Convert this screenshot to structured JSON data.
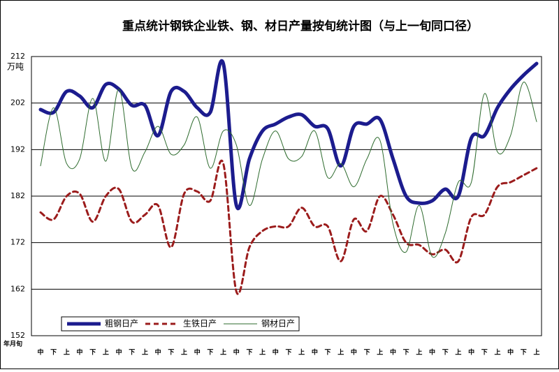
{
  "chart_data": {
    "type": "line",
    "title": "重点统计钢铁企业铁、钢、材日产量按旬统计图（与上一旬同口径）",
    "y_label": "万吨",
    "x_label": "年月旬",
    "categories": [
      "中",
      "下",
      "上",
      "中",
      "下",
      "上",
      "中",
      "下",
      "上",
      "中",
      "下",
      "上",
      "中",
      "下",
      "上",
      "中",
      "下",
      "上",
      "中",
      "下",
      "上",
      "中",
      "下",
      "上",
      "中",
      "下",
      "上",
      "中",
      "下",
      "上",
      "中",
      "下",
      "上",
      "中",
      "下",
      "上",
      "中",
      "下",
      "上"
    ],
    "series": [
      {
        "name": "粗钢日产",
        "color": "#1c1c8e",
        "width": 5,
        "dash": "none",
        "values": [
          200.6,
          200.0,
          204.5,
          203.5,
          201,
          206,
          205,
          201.5,
          201.5,
          195,
          204.5,
          204.5,
          201,
          200,
          210.5,
          180,
          190,
          196,
          197.5,
          199,
          199.5,
          197,
          196.5,
          188.5,
          197,
          197.5,
          198.5,
          190,
          182,
          180.5,
          181,
          183.5,
          182,
          194.5,
          195,
          201,
          205,
          208,
          210.5
        ]
      },
      {
        "name": "生铁日产",
        "color": "#9b1c1c",
        "width": 3,
        "dash": "7 5",
        "values": [
          178.5,
          177,
          182,
          182.5,
          176.5,
          182,
          183.5,
          176.5,
          178,
          180,
          171,
          182.5,
          183,
          181,
          189,
          161.5,
          171,
          174.5,
          175.5,
          175.5,
          179.5,
          175.5,
          175.5,
          168,
          177,
          174.5,
          182,
          178,
          172,
          171.5,
          169.5,
          170.5,
          168,
          177.5,
          178,
          184,
          185,
          186.5,
          188
        ]
      },
      {
        "name": "钢材日产",
        "color": "#2e6b2e",
        "width": 1,
        "dash": "none",
        "values": [
          188.5,
          201,
          189,
          190,
          203,
          189.5,
          205,
          188,
          191.5,
          197,
          191,
          193,
          199,
          188,
          196,
          193,
          180,
          190,
          196,
          190,
          190.5,
          196,
          186,
          189,
          184,
          190,
          194,
          176,
          170,
          180,
          169,
          174,
          185,
          185,
          204,
          191.5,
          195,
          206.5,
          198
        ]
      }
    ],
    "ylim": [
      152,
      212
    ],
    "yticks": [
      152,
      162,
      172,
      182,
      192,
      202,
      212
    ],
    "grid": true,
    "legend": "lower left"
  }
}
